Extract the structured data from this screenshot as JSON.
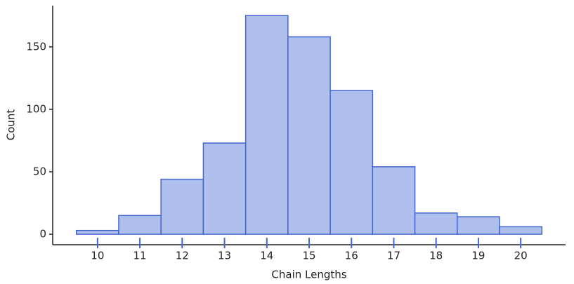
{
  "chart_data": {
    "type": "histogram",
    "x_label": "Chain Lengths",
    "y_label": "Count",
    "bins": [
      9.5,
      10.5,
      11.5,
      12.5,
      13.5,
      14.5,
      15.5,
      16.5,
      17.5,
      18.5,
      19.5,
      20.5
    ],
    "values": [
      3,
      15,
      44,
      73,
      175,
      158,
      115,
      54,
      17,
      14,
      6
    ],
    "color": "#aebfee",
    "edge_color": "#4466cc",
    "xlim": [
      8.94,
      21.06
    ],
    "ylim": [
      -8.4,
      183
    ],
    "xticks": [
      10,
      11,
      12,
      13,
      14,
      15,
      16,
      17,
      18,
      19,
      20
    ],
    "yticks": [
      0,
      50,
      100,
      150
    ]
  }
}
